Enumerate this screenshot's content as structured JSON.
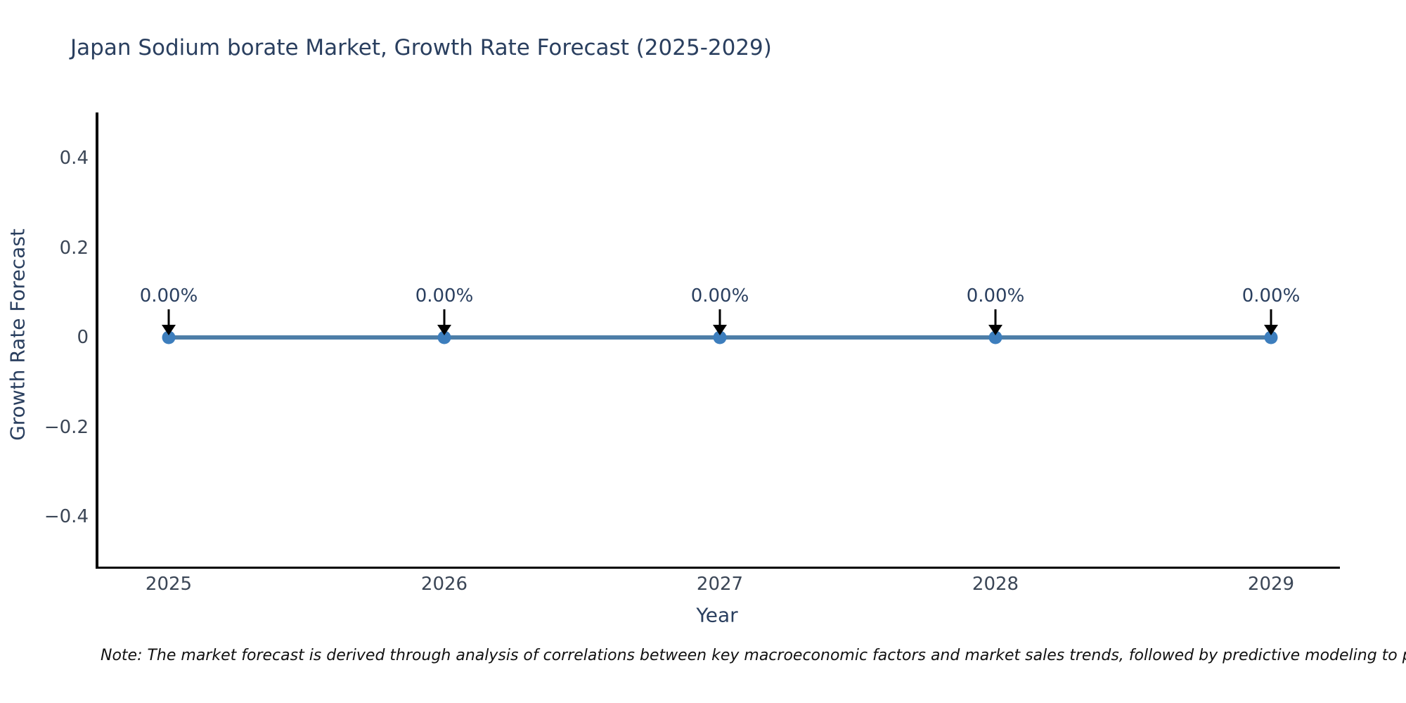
{
  "chart": {
    "title": "Japan Sodium borate Market, Growth Rate Forecast (2025-2029)",
    "x_axis_title": "Year",
    "y_axis_title": "Growth Rate Forecast",
    "note": "Note: The market forecast is derived through analysis of correlations between key macroeconomic factors and market sales trends, followed by predictive modeling to project future sa",
    "colors": {
      "title_text": "#2a3f5f",
      "tick_text": "#3b4656",
      "axis_line": "#000000",
      "line": "#4d7ea8",
      "marker": "#3d7ebd",
      "annotation_arrow": "#000000",
      "note_text": "#111111",
      "background": "#ffffff"
    }
  },
  "chart_data": {
    "type": "line",
    "title": "Japan Sodium borate Market, Growth Rate Forecast (2025-2029)",
    "xlabel": "Year",
    "ylabel": "Growth Rate Forecast",
    "x": [
      2025,
      2026,
      2027,
      2028,
      2029
    ],
    "x_tick_labels": [
      "2025",
      "2026",
      "2027",
      "2028",
      "2029"
    ],
    "series": [
      {
        "name": "Growth Rate Forecast",
        "values": [
          0,
          0,
          0,
          0,
          0
        ],
        "point_labels": [
          "0.00%",
          "0.00%",
          "0.00%",
          "0.00%",
          "0.00%"
        ]
      }
    ],
    "y_ticks": [
      0.4,
      0.2,
      0,
      -0.2,
      -0.4
    ],
    "y_tick_labels": [
      "0.4",
      "0.2",
      "0",
      "−0.2",
      "−0.4"
    ],
    "ylim": [
      -0.51,
      0.5
    ],
    "grid": false,
    "legend_position": "none",
    "line_color": "#4d7ea8",
    "marker_color": "#3d7ebd"
  }
}
